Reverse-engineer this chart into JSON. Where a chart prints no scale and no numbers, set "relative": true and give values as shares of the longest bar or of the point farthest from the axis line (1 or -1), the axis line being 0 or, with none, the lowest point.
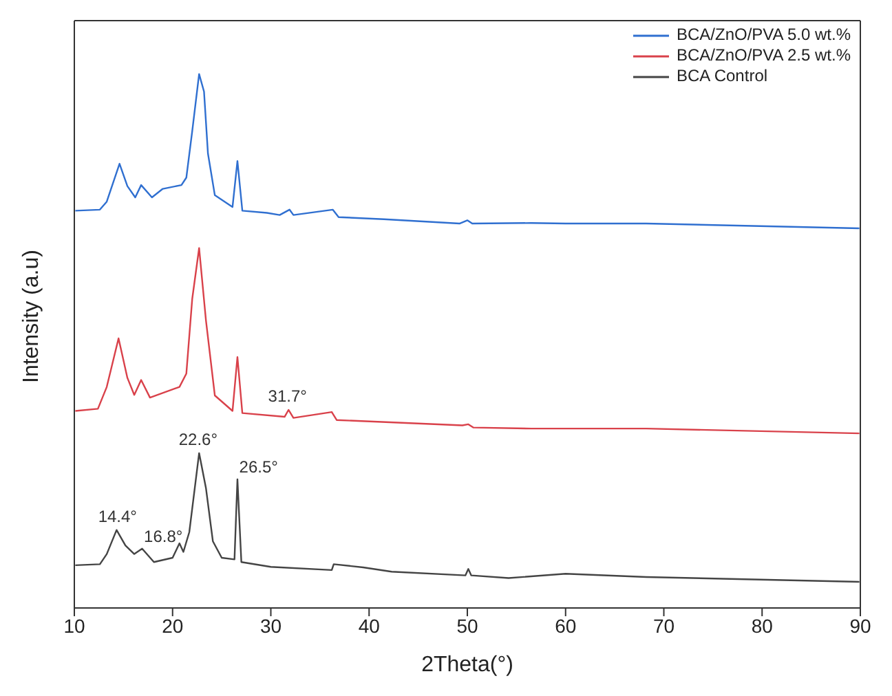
{
  "chart_data": {
    "type": "line",
    "relative": true,
    "xlabel": "2Theta(°)",
    "ylabel": "Intensity (a.u)",
    "xlim": [
      10,
      90
    ],
    "xticks": [
      10,
      20,
      30,
      40,
      50,
      60,
      70,
      80,
      90
    ],
    "grid": false,
    "legend": "top right",
    "marker": "none",
    "line_style": "solid",
    "series": [
      {
        "name": "BCA/ZnO/PVA 5.0 wt.%",
        "color": "#2f6fd0",
        "x": [
          10.1,
          12.6,
          13.3,
          14.6,
          15.4,
          16.2,
          16.8,
          17.9,
          19.0,
          20.9,
          21.4,
          22.0,
          22.7,
          23.2,
          23.6,
          24.3,
          26.1,
          26.6,
          27.1,
          29.6,
          30.9,
          31.9,
          32.3,
          36.3,
          36.9,
          41.5,
          49.2,
          50.0,
          50.5,
          56.5,
          60.0,
          68.2,
          89.9
        ],
        "values": [
          0.744,
          0.746,
          0.761,
          0.832,
          0.79,
          0.769,
          0.792,
          0.769,
          0.785,
          0.792,
          0.806,
          0.893,
          1.0,
          0.967,
          0.851,
          0.773,
          0.751,
          0.837,
          0.744,
          0.74,
          0.736,
          0.746,
          0.736,
          0.746,
          0.732,
          0.728,
          0.72,
          0.726,
          0.72,
          0.721,
          0.72,
          0.72,
          0.711
        ]
      },
      {
        "name": "BCA/ZnO/PVA 2.5 wt.%",
        "color": "#d9414a",
        "x": [
          10.1,
          12.4,
          13.3,
          14.5,
          15.4,
          16.1,
          16.8,
          17.7,
          20.7,
          21.4,
          22.0,
          22.7,
          23.4,
          24.3,
          26.1,
          26.6,
          27.1,
          31.4,
          31.8,
          32.3,
          36.2,
          36.7,
          49.5,
          50.1,
          50.6,
          56.5,
          68.2,
          89.9
        ],
        "values": [
          0.369,
          0.373,
          0.414,
          0.505,
          0.431,
          0.399,
          0.427,
          0.394,
          0.414,
          0.439,
          0.579,
          0.674,
          0.538,
          0.398,
          0.369,
          0.47,
          0.365,
          0.358,
          0.371,
          0.356,
          0.367,
          0.352,
          0.342,
          0.344,
          0.338,
          0.336,
          0.336,
          0.327
        ]
      },
      {
        "name": "BCA Control",
        "color": "#444444",
        "x": [
          10.1,
          12.6,
          13.3,
          14.3,
          15.2,
          16.1,
          16.9,
          18.1,
          20.0,
          20.7,
          21.1,
          21.7,
          22.7,
          23.4,
          24.1,
          25.0,
          26.3,
          26.6,
          27.0,
          30.0,
          36.2,
          36.4,
          39.4,
          42.3,
          49.8,
          50.1,
          50.4,
          54.2,
          60.0,
          68.2,
          89.9
        ],
        "values": [
          0.08,
          0.082,
          0.101,
          0.146,
          0.117,
          0.101,
          0.111,
          0.086,
          0.094,
          0.121,
          0.105,
          0.142,
          0.29,
          0.224,
          0.125,
          0.094,
          0.091,
          0.241,
          0.086,
          0.077,
          0.071,
          0.082,
          0.076,
          0.068,
          0.061,
          0.073,
          0.061,
          0.056,
          0.064,
          0.058,
          0.049
        ]
      }
    ],
    "annotations": [
      {
        "text": "14.4°",
        "x": 14.4,
        "y": 0.146
      },
      {
        "text": "16.8°",
        "x": 16.8,
        "y": 0.111
      },
      {
        "text": "22.6°",
        "x": 22.6,
        "y": 0.29
      },
      {
        "text": "26.5°",
        "x": 26.5,
        "y": 0.241
      },
      {
        "text": "31.7°",
        "x": 31.7,
        "y": 0.371
      }
    ]
  }
}
